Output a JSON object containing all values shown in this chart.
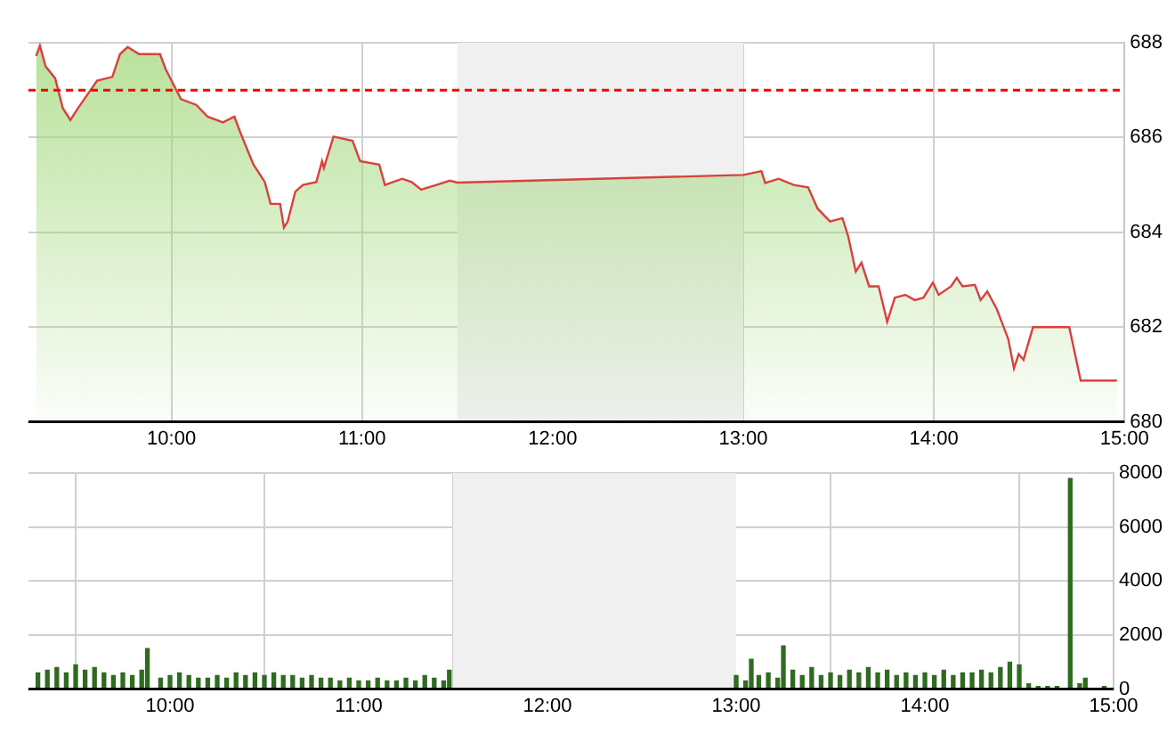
{
  "chart_data": [
    {
      "type": "area",
      "x": [
        9.29,
        9.31,
        9.34,
        9.39,
        9.43,
        9.47,
        9.51,
        9.61,
        9.69,
        9.73,
        9.77,
        9.83,
        9.94,
        9.97,
        10.05,
        10.13,
        10.19,
        10.27,
        10.33,
        10.36,
        10.43,
        10.49,
        10.52,
        10.57,
        10.59,
        10.61,
        10.65,
        10.69,
        10.76,
        10.79,
        10.8,
        10.85,
        10.95,
        10.99,
        11.09,
        11.12,
        11.21,
        11.26,
        11.31,
        11.39,
        11.46,
        11.5,
        13.0,
        13.095,
        13.115,
        13.185,
        13.265,
        13.34,
        13.39,
        13.455,
        13.52,
        13.55,
        13.59,
        13.62,
        13.66,
        13.71,
        13.755,
        13.795,
        13.85,
        13.9,
        13.945,
        13.995,
        14.025,
        14.09,
        14.12,
        14.15,
        14.215,
        14.245,
        14.28,
        14.33,
        14.39,
        14.42,
        14.445,
        14.47,
        14.52,
        14.71,
        14.77,
        14.96
      ],
      "series": [
        {
          "color": "#d9403f",
          "values": [
            687.72,
            687.94,
            687.5,
            687.25,
            686.62,
            686.37,
            686.62,
            687.2,
            687.28,
            687.76,
            687.91,
            687.76,
            687.76,
            687.44,
            686.81,
            686.69,
            686.44,
            686.32,
            686.44,
            686.12,
            685.43,
            685.06,
            684.6,
            684.6,
            684.1,
            684.23,
            684.86,
            685.0,
            685.06,
            685.5,
            685.36,
            686.02,
            685.93,
            685.5,
            685.43,
            685.0,
            685.13,
            685.06,
            684.9,
            685.0,
            685.09,
            685.05,
            685.21,
            685.29,
            685.04,
            685.13,
            685.0,
            684.95,
            684.5,
            684.23,
            684.3,
            683.92,
            683.17,
            683.36,
            682.86,
            682.86,
            682.11,
            682.62,
            682.68,
            682.57,
            682.62,
            682.94,
            682.68,
            682.86,
            683.04,
            682.86,
            682.89,
            682.57,
            682.75,
            682.38,
            681.75,
            681.13,
            681.43,
            681.31,
            682.0,
            682.0,
            680.87,
            680.87
          ]
        }
      ],
      "xlim": [
        9.25,
        15
      ],
      "ylim": [
        680,
        688
      ],
      "xticks": [
        {
          "value": 10,
          "label": "10:00"
        },
        {
          "value": 11,
          "label": "11:00"
        },
        {
          "value": 12,
          "label": "12:00"
        },
        {
          "value": 13,
          "label": "13:00"
        },
        {
          "value": 14,
          "label": "14:00"
        },
        {
          "value": 15,
          "label": "15:00"
        }
      ],
      "yticks": [
        680,
        682,
        684,
        686,
        688
      ],
      "grid": true,
      "bands": [
        {
          "axis": "x",
          "from": 11.5,
          "to": 13,
          "color": "#f0f0f0"
        }
      ],
      "ref_lines": [
        {
          "axis": "y",
          "value": 687,
          "color": "#ff0000",
          "line_style": "dashed"
        }
      ]
    },
    {
      "type": "bar",
      "x": [
        9.3,
        9.35,
        9.4,
        9.45,
        9.5,
        9.55,
        9.6,
        9.65,
        9.7,
        9.75,
        9.8,
        9.85,
        9.88,
        9.95,
        10.0,
        10.05,
        10.1,
        10.15,
        10.2,
        10.25,
        10.3,
        10.35,
        10.4,
        10.45,
        10.5,
        10.55,
        10.6,
        10.65,
        10.7,
        10.75,
        10.8,
        10.85,
        10.9,
        10.95,
        11.0,
        11.05,
        11.1,
        11.15,
        11.2,
        11.25,
        11.3,
        11.35,
        11.4,
        11.45,
        11.48,
        13.0,
        13.05,
        13.08,
        13.12,
        13.17,
        13.22,
        13.25,
        13.3,
        13.35,
        13.4,
        13.45,
        13.5,
        13.55,
        13.6,
        13.65,
        13.7,
        13.75,
        13.8,
        13.85,
        13.9,
        13.95,
        14.0,
        14.05,
        14.1,
        14.15,
        14.2,
        14.25,
        14.3,
        14.35,
        14.4,
        14.45,
        14.5,
        14.55,
        14.6,
        14.65,
        14.7,
        14.77,
        14.82,
        14.85,
        14.95
      ],
      "series": [
        {
          "color": "#2e6b1f",
          "values": [
            600,
            700,
            800,
            600,
            900,
            700,
            800,
            600,
            500,
            600,
            500,
            700,
            1500,
            400,
            500,
            600,
            500,
            400,
            400,
            500,
            400,
            600,
            500,
            600,
            500,
            600,
            500,
            500,
            400,
            500,
            400,
            400,
            300,
            400,
            300,
            300,
            400,
            300,
            300,
            400,
            300,
            500,
            400,
            300,
            700,
            500,
            300,
            1100,
            500,
            600,
            400,
            1600,
            700,
            500,
            800,
            500,
            600,
            500,
            700,
            600,
            800,
            600,
            700,
            500,
            600,
            500,
            600,
            500,
            700,
            500,
            600,
            600,
            700,
            600,
            800,
            1000,
            900,
            200,
            100,
            100,
            100,
            7800,
            200,
            400,
            100
          ]
        }
      ],
      "xlim": [
        9.25,
        15
      ],
      "ylim": [
        0,
        8000
      ],
      "xticks": [
        {
          "value": 10,
          "label": "10:00"
        },
        {
          "value": 11,
          "label": "11:00"
        },
        {
          "value": 12,
          "label": "12:00"
        },
        {
          "value": 13,
          "label": "13:00"
        },
        {
          "value": 14,
          "label": "14:00"
        },
        {
          "value": 15,
          "label": "15:00"
        }
      ],
      "yticks": [
        0,
        2000,
        4000,
        6000,
        8000
      ],
      "grid": true,
      "bands": [
        {
          "axis": "x",
          "from": 11.5,
          "to": 13,
          "color": "#f0f0f0"
        }
      ]
    }
  ]
}
